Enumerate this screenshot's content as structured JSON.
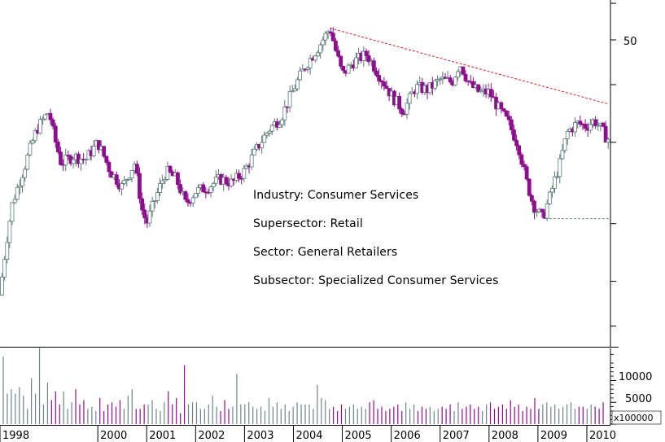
{
  "colors": {
    "up_candle": "#5b7a78",
    "down_candle": "#8c0e8c",
    "trend_line": "#d62020",
    "support_line": "#6f8585",
    "axis": "#000000",
    "volume_up": "#6f8585",
    "volume_down": "#8c0e8c"
  },
  "annotations": [
    "Industry: Consumer Services",
    "Supersector: Retail",
    "Sector: General Retailers",
    "Subsector: Specialized Consumer Services"
  ],
  "volume_multiplier_label": "x100000",
  "chart_data": [
    {
      "type": "candlestick",
      "scale": "log",
      "price_tick_labels": [
        "50"
      ],
      "x_tick_labels": [
        "1998",
        "2000",
        "2001",
        "2002",
        "2003",
        "2004",
        "2005",
        "2006",
        "2007",
        "2008",
        "2009",
        "2010"
      ],
      "x_range": [
        1998.0,
        2010.45
      ],
      "ylim": [
        11,
        61
      ],
      "monthly_close": [
        [
          1998.0,
          14.0
        ],
        [
          1998.25,
          22.0
        ],
        [
          1998.5,
          26.5
        ],
        [
          1998.75,
          32.0
        ],
        [
          1999.0,
          35.0
        ],
        [
          1999.1,
          31.0
        ],
        [
          1999.25,
          27.0
        ],
        [
          1999.5,
          28.0
        ],
        [
          1999.75,
          27.5
        ],
        [
          2000.0,
          30.0
        ],
        [
          2000.25,
          26.0
        ],
        [
          2000.5,
          24.0
        ],
        [
          2000.75,
          27.0
        ],
        [
          2000.9,
          21.5
        ],
        [
          2001.0,
          20.0
        ],
        [
          2001.2,
          23.0
        ],
        [
          2001.4,
          26.0
        ],
        [
          2001.6,
          25.0
        ],
        [
          2001.8,
          22.0
        ],
        [
          2002.0,
          23.5
        ],
        [
          2002.25,
          24.0
        ],
        [
          2002.5,
          25.0
        ],
        [
          2002.75,
          24.5
        ],
        [
          2003.0,
          26.0
        ],
        [
          2003.25,
          29.0
        ],
        [
          2003.5,
          32.0
        ],
        [
          2003.75,
          34.0
        ],
        [
          2004.0,
          39.0
        ],
        [
          2004.25,
          44.0
        ],
        [
          2004.5,
          48.0
        ],
        [
          2004.75,
          53.0
        ],
        [
          2004.85,
          48.0
        ],
        [
          2005.0,
          42.0
        ],
        [
          2005.25,
          45.0
        ],
        [
          2005.5,
          46.5
        ],
        [
          2005.75,
          42.0
        ],
        [
          2006.0,
          38.0
        ],
        [
          2006.25,
          35.0
        ],
        [
          2006.5,
          39.5
        ],
        [
          2006.75,
          39.0
        ],
        [
          2007.0,
          41.0
        ],
        [
          2007.25,
          40.5
        ],
        [
          2007.4,
          44.5
        ],
        [
          2007.6,
          40.0
        ],
        [
          2007.8,
          38.5
        ],
        [
          2008.0,
          38.5
        ],
        [
          2008.2,
          35.5
        ],
        [
          2008.4,
          33.0
        ],
        [
          2008.6,
          29.5
        ],
        [
          2008.75,
          25.0
        ],
        [
          2008.9,
          22.0
        ],
        [
          2009.1,
          20.5
        ],
        [
          2009.25,
          23.0
        ],
        [
          2009.45,
          27.0
        ],
        [
          2009.6,
          31.5
        ],
        [
          2009.8,
          33.0
        ],
        [
          2010.0,
          32.5
        ],
        [
          2010.15,
          33.5
        ],
        [
          2010.3,
          32.0
        ],
        [
          2010.42,
          30.5
        ]
      ],
      "trend_line": [
        [
          2004.75,
          53.0
        ],
        [
          2010.45,
          36.3
        ]
      ],
      "support_line": [
        [
          2009.15,
          20.5
        ],
        [
          2010.45,
          20.5
        ]
      ],
      "volume": {
        "tick_labels": [
          "10000",
          "5000"
        ],
        "ylim": [
          0,
          17000
        ],
        "values": [
          15500,
          7000,
          8000,
          7000,
          8500,
          6500,
          3500,
          10500,
          7000,
          17500,
          4500,
          9500,
          5500,
          7500,
          4500,
          7500,
          3500,
          5000,
          8000,
          4500,
          5500,
          3500,
          4000,
          3000,
          6000,
          3000,
          4500,
          5000,
          4000,
          5500,
          3500,
          6500,
          8000,
          3500,
          3500,
          4500,
          4500,
          5500,
          3500,
          3000,
          5000,
          7500,
          4500,
          6000,
          2500,
          13500,
          4500,
          5000,
          5000,
          3500,
          3500,
          4500,
          6500,
          4000,
          3000,
          5500,
          3500,
          4000,
          11500,
          4500,
          4500,
          5000,
          4000,
          3500,
          4000,
          3000,
          6000,
          4000,
          5000,
          3500,
          4500,
          3000,
          4000,
          5000,
          4500,
          4500,
          4500,
          3500,
          9000,
          6000,
          5500,
          3500,
          4000,
          3000,
          4500,
          3500,
          4000,
          4500,
          3500,
          4000,
          3500,
          5000,
          5500,
          3500,
          4000,
          3000,
          3500,
          4000,
          4500,
          3000,
          5000,
          3500,
          4500,
          3000,
          4000,
          3500,
          4000,
          3000,
          3500,
          4000,
          3500,
          4500,
          3000,
          5000,
          3500,
          4000,
          4500,
          3500,
          4000,
          3000,
          4500,
          5000,
          3500,
          4000,
          4500,
          3500,
          5500,
          4000,
          4500,
          3000,
          4000,
          3500,
          6000,
          3500,
          4500,
          5000,
          4000,
          4500,
          3500,
          4000,
          4500,
          5000,
          3500,
          4000,
          4000,
          3500,
          4500,
          4000,
          3500,
          5000
        ]
      }
    }
  ]
}
